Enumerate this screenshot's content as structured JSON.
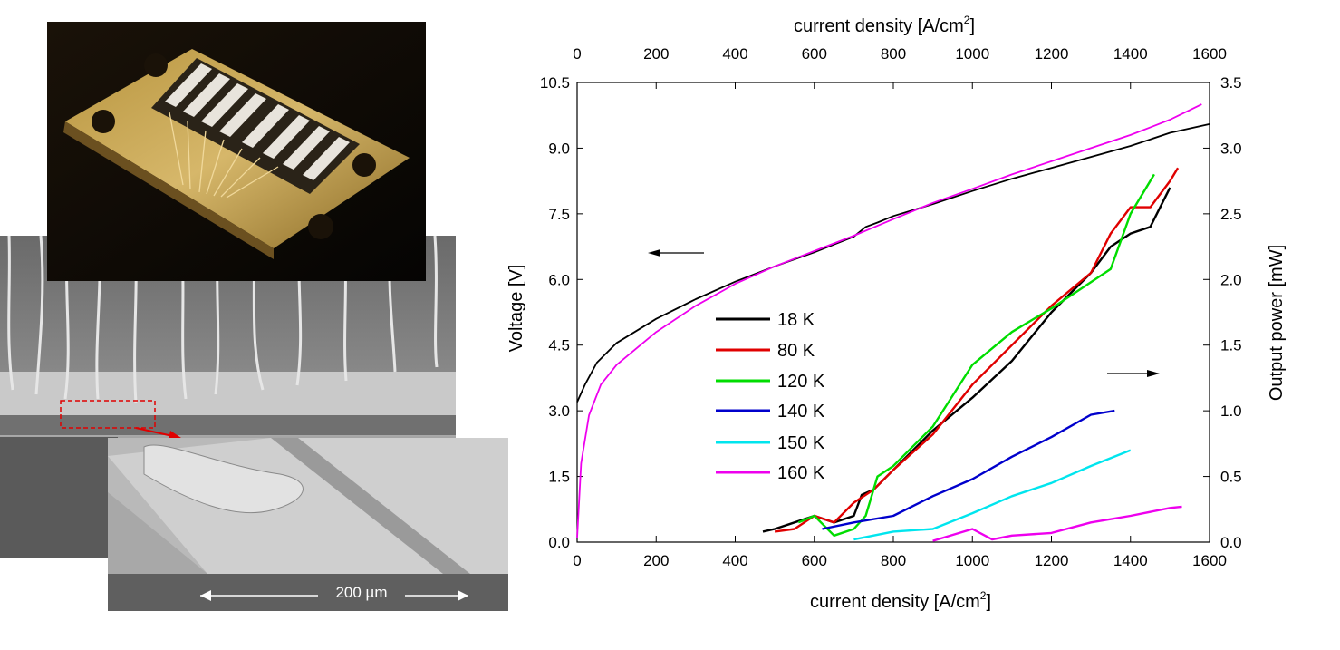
{
  "photos": {
    "chip_photo": "packaged laser chip with gold bond wires",
    "sem_overview": "SEM image of laser ridges with bond wires",
    "sem_detail": "SEM close-up of a single ridge",
    "scale_bar_label": "200 µm"
  },
  "chart_data": {
    "type": "line",
    "x_top_label": "current density [A/cm",
    "x_bottom_label": "current density [A/cm",
    "x_label_superscript": "2",
    "x_label_suffix": "]",
    "y_left_label": "Voltage [V]",
    "y_right_label": "Output power [mW]",
    "xlim": [
      0,
      1600
    ],
    "ylim_left": [
      0,
      10.5
    ],
    "ylim_right": [
      0,
      3.5
    ],
    "x_ticks": [
      "0",
      "200",
      "400",
      "600",
      "800",
      "1000",
      "1200",
      "1400",
      "1600"
    ],
    "y_left_ticks": [
      "0.0",
      "1.5",
      "3.0",
      "4.5",
      "6.0",
      "7.5",
      "9.0",
      "10.5"
    ],
    "y_right_ticks": [
      "0.0",
      "0.5",
      "1.0",
      "1.5",
      "2.0",
      "2.5",
      "3.0",
      "3.5"
    ],
    "legend": {
      "placement": "center-left",
      "entries": [
        {
          "name": "18 K",
          "color": "#000000"
        },
        {
          "name": "80 K",
          "color": "#e00000"
        },
        {
          "name": "120 K",
          "color": "#00dd00"
        },
        {
          "name": "140 K",
          "color": "#0000cc"
        },
        {
          "name": "150 K",
          "color": "#00e5ee"
        },
        {
          "name": "160 K",
          "color": "#ee00ee"
        }
      ]
    },
    "voltage_series": [
      {
        "name": "18 K",
        "color": "#000000",
        "axis": "left",
        "x": [
          0,
          20,
          50,
          100,
          200,
          300,
          400,
          500,
          600,
          700,
          730,
          760,
          800,
          900,
          1000,
          1100,
          1200,
          1300,
          1400,
          1500,
          1600
        ],
        "y": [
          3.2,
          3.6,
          4.1,
          4.55,
          5.1,
          5.55,
          5.95,
          6.3,
          6.62,
          6.98,
          7.2,
          7.3,
          7.45,
          7.72,
          8.02,
          8.3,
          8.55,
          8.8,
          9.05,
          9.35,
          9.55
        ]
      },
      {
        "name": "160 K",
        "color": "#ee00ee",
        "axis": "left",
        "x": [
          0,
          10,
          30,
          60,
          100,
          200,
          300,
          400,
          500,
          600,
          700,
          800,
          900,
          1000,
          1100,
          1200,
          1300,
          1400,
          1500,
          1580
        ],
        "y": [
          0.1,
          1.8,
          2.9,
          3.6,
          4.05,
          4.8,
          5.4,
          5.9,
          6.3,
          6.65,
          7.0,
          7.38,
          7.75,
          8.07,
          8.4,
          8.7,
          9.0,
          9.3,
          9.65,
          10.0
        ]
      }
    ],
    "power_series": [
      {
        "name": "18 K",
        "color": "#000000",
        "axis": "right",
        "x": [
          470,
          500,
          550,
          600,
          650,
          700,
          720,
          750,
          800,
          900,
          1000,
          1100,
          1200,
          1300,
          1350,
          1400,
          1450,
          1500
        ],
        "y": [
          0.08,
          0.1,
          0.15,
          0.2,
          0.15,
          0.2,
          0.36,
          0.4,
          0.55,
          0.85,
          1.1,
          1.38,
          1.75,
          2.05,
          2.25,
          2.35,
          2.4,
          2.7
        ]
      },
      {
        "name": "80 K",
        "color": "#e00000",
        "axis": "right",
        "x": [
          500,
          550,
          600,
          650,
          700,
          750,
          800,
          900,
          1000,
          1100,
          1200,
          1300,
          1350,
          1400,
          1450,
          1500,
          1520
        ],
        "y": [
          0.08,
          0.1,
          0.2,
          0.15,
          0.3,
          0.4,
          0.55,
          0.82,
          1.2,
          1.5,
          1.8,
          2.05,
          2.35,
          2.55,
          2.55,
          2.75,
          2.85
        ]
      },
      {
        "name": "120 K",
        "color": "#00dd00",
        "axis": "right",
        "x": [
          560,
          600,
          650,
          700,
          730,
          760,
          800,
          900,
          1000,
          1100,
          1200,
          1300,
          1350,
          1400,
          1460
        ],
        "y": [
          0.15,
          0.2,
          0.05,
          0.1,
          0.2,
          0.5,
          0.58,
          0.88,
          1.35,
          1.6,
          1.78,
          1.98,
          2.08,
          2.5,
          2.8
        ]
      },
      {
        "name": "140 K",
        "color": "#0000cc",
        "axis": "right",
        "x": [
          620,
          700,
          800,
          900,
          1000,
          1100,
          1200,
          1300,
          1360
        ],
        "y": [
          0.1,
          0.15,
          0.2,
          0.35,
          0.48,
          0.65,
          0.8,
          0.97,
          1.0
        ]
      },
      {
        "name": "150 K",
        "color": "#00e5ee",
        "axis": "right",
        "x": [
          700,
          800,
          900,
          1000,
          1100,
          1200,
          1300,
          1400
        ],
        "y": [
          0.02,
          0.08,
          0.1,
          0.22,
          0.35,
          0.45,
          0.58,
          0.7
        ]
      },
      {
        "name": "160 K",
        "color": "#ee00ee",
        "axis": "right",
        "x": [
          900,
          1000,
          1050,
          1100,
          1200,
          1300,
          1400,
          1500,
          1530
        ],
        "y": [
          0.01,
          0.1,
          0.02,
          0.05,
          0.07,
          0.15,
          0.2,
          0.26,
          0.27
        ]
      }
    ]
  }
}
